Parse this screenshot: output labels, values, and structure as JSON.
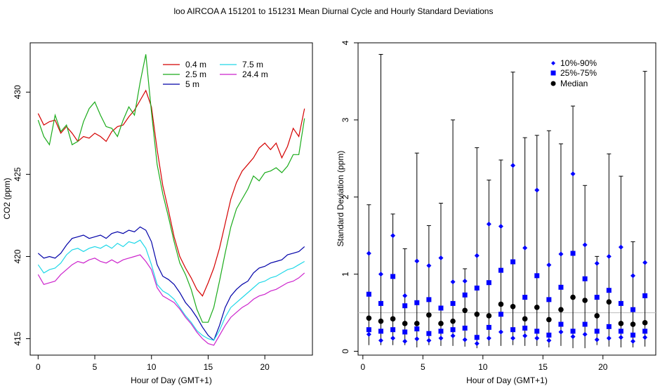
{
  "title": "loo   AIRCOA A   151201 to 151231   Mean Diurnal Cycle and Hourly Standard Deviations",
  "chart_data": [
    {
      "type": "line",
      "xlabel": "Hour of Day (GMT+1)",
      "ylabel": "CO2 (ppm)",
      "xlim": [
        -0.7,
        24.2
      ],
      "ylim": [
        414.0,
        433.0
      ],
      "xticks": [
        0,
        5,
        10,
        15,
        20
      ],
      "yticks": [
        415,
        420,
        425,
        430
      ],
      "grid": false,
      "legend_position": "top-right",
      "series": [
        {
          "name": "0.4 m",
          "color": "#d40000",
          "x": [
            0,
            0.5,
            1,
            1.5,
            2,
            2.5,
            3,
            3.5,
            4,
            4.5,
            5,
            5.5,
            6,
            6.5,
            7,
            7.5,
            8,
            8.5,
            9,
            9.5,
            10,
            10.5,
            11,
            11.5,
            12,
            12.5,
            13,
            13.5,
            14,
            14.5,
            15,
            15.5,
            16,
            16.5,
            17,
            17.5,
            18,
            18.5,
            19,
            19.5,
            20,
            20.5,
            21,
            21.5,
            22,
            22.5,
            23,
            23.5
          ],
          "y": [
            428.7,
            428.0,
            428.2,
            428.3,
            427.5,
            427.9,
            427.5,
            427.0,
            427.3,
            427.2,
            427.5,
            427.3,
            427.0,
            427.6,
            427.9,
            428.0,
            428.5,
            428.9,
            429.5,
            430.1,
            429.1,
            426.5,
            424.3,
            422.8,
            421.2,
            420.0,
            419.3,
            418.7,
            418.0,
            417.6,
            418.4,
            419.3,
            420.5,
            422.0,
            423.5,
            424.5,
            425.2,
            425.6,
            426.0,
            426.6,
            426.9,
            426.5,
            426.9,
            426.0,
            426.7,
            427.8,
            427.3,
            429.0
          ]
        },
        {
          "name": "2.5 m",
          "color": "#1aab1a",
          "x": [
            0,
            0.5,
            1,
            1.5,
            2,
            2.5,
            3,
            3.5,
            4,
            4.5,
            5,
            5.5,
            6,
            6.5,
            7,
            7.5,
            8,
            8.5,
            9,
            9.5,
            10,
            10.5,
            11,
            11.5,
            12,
            12.5,
            13,
            13.5,
            14,
            14.5,
            15,
            15.5,
            16,
            16.5,
            17,
            17.5,
            18,
            18.5,
            19,
            19.5,
            20,
            20.5,
            21,
            21.5,
            22,
            22.5,
            23,
            23.5
          ],
          "y": [
            428.3,
            427.3,
            426.8,
            428.6,
            427.6,
            428.0,
            426.8,
            427.0,
            428.2,
            429.0,
            429.4,
            428.6,
            427.9,
            427.8,
            427.3,
            428.3,
            429.1,
            428.6,
            430.6,
            432.3,
            428.8,
            425.6,
            423.8,
            422.4,
            420.9,
            419.6,
            418.9,
            418.0,
            416.8,
            416.0,
            416.0,
            416.9,
            418.5,
            420.2,
            421.8,
            422.9,
            423.5,
            424.1,
            424.9,
            424.6,
            425.1,
            425.2,
            425.4,
            425.1,
            425.5,
            426.2,
            426.2,
            428.4
          ]
        },
        {
          "name": "5 m",
          "color": "#0000a8",
          "x": [
            0,
            0.5,
            1,
            1.5,
            2,
            2.5,
            3,
            3.5,
            4,
            4.5,
            5,
            5.5,
            6,
            6.5,
            7,
            7.5,
            8,
            8.5,
            9,
            9.5,
            10,
            10.5,
            11,
            11.5,
            12,
            12.5,
            13,
            13.5,
            14,
            14.5,
            15,
            15.5,
            16,
            16.5,
            17,
            17.5,
            18,
            18.5,
            19,
            19.5,
            20,
            20.5,
            21,
            21.5,
            22,
            22.5,
            23,
            23.5
          ],
          "y": [
            420.2,
            419.9,
            420.0,
            419.9,
            420.2,
            420.7,
            421.1,
            421.2,
            421.3,
            421.1,
            421.2,
            421.3,
            421.1,
            421.4,
            421.5,
            421.4,
            421.6,
            421.5,
            421.8,
            421.6,
            420.9,
            419.5,
            418.8,
            418.6,
            418.3,
            417.8,
            417.2,
            416.8,
            416.3,
            415.7,
            415.2,
            414.9,
            415.8,
            416.9,
            417.6,
            418.0,
            418.3,
            418.5,
            419.0,
            419.3,
            419.4,
            419.6,
            419.7,
            419.8,
            420.1,
            420.2,
            420.3,
            420.6
          ]
        },
        {
          "name": "7.5 m",
          "color": "#20d8e8",
          "x": [
            0,
            0.5,
            1,
            1.5,
            2,
            2.5,
            3,
            3.5,
            4,
            4.5,
            5,
            5.5,
            6,
            6.5,
            7,
            7.5,
            8,
            8.5,
            9,
            9.5,
            10,
            10.5,
            11,
            11.5,
            12,
            12.5,
            13,
            13.5,
            14,
            14.5,
            15,
            15.5,
            16,
            16.5,
            17,
            17.5,
            18,
            18.5,
            19,
            19.5,
            20,
            20.5,
            21,
            21.5,
            22,
            22.5,
            23,
            23.5
          ],
          "y": [
            419.5,
            419.0,
            419.2,
            419.3,
            419.6,
            420.1,
            420.4,
            420.5,
            420.3,
            420.5,
            420.6,
            420.5,
            420.7,
            420.5,
            420.8,
            420.6,
            420.9,
            420.8,
            421.0,
            420.5,
            419.5,
            418.3,
            417.9,
            417.7,
            417.4,
            416.9,
            416.4,
            416.0,
            415.5,
            415.2,
            415.0,
            414.9,
            415.5,
            416.3,
            416.9,
            417.2,
            417.5,
            417.8,
            418.1,
            418.4,
            418.5,
            418.7,
            418.8,
            419.0,
            419.2,
            419.3,
            419.5,
            419.7
          ]
        },
        {
          "name": "24.4 m",
          "color": "#cc22cc",
          "x": [
            0,
            0.5,
            1,
            1.5,
            2,
            2.5,
            3,
            3.5,
            4,
            4.5,
            5,
            5.5,
            6,
            6.5,
            7,
            7.5,
            8,
            8.5,
            9,
            9.5,
            10,
            10.5,
            11,
            11.5,
            12,
            12.5,
            13,
            13.5,
            14,
            14.5,
            15,
            15.5,
            16,
            16.5,
            17,
            17.5,
            18,
            18.5,
            19,
            19.5,
            20,
            20.5,
            21,
            21.5,
            22,
            22.5,
            23,
            23.5
          ],
          "y": [
            418.9,
            418.3,
            418.4,
            418.5,
            418.9,
            419.2,
            419.5,
            419.7,
            419.6,
            419.8,
            419.9,
            419.7,
            419.6,
            419.8,
            419.6,
            419.8,
            419.9,
            420.0,
            420.1,
            419.7,
            419.2,
            418.1,
            417.6,
            417.4,
            417.2,
            416.8,
            416.3,
            415.9,
            415.4,
            415.0,
            414.7,
            414.6,
            415.2,
            415.8,
            416.3,
            416.6,
            416.9,
            417.1,
            417.4,
            417.6,
            417.7,
            417.9,
            418.0,
            418.2,
            418.4,
            418.5,
            418.7,
            419.0
          ]
        }
      ]
    },
    {
      "type": "scatter",
      "xlabel": "Hour of Day (GMT+1)",
      "ylabel": "Standard Deviation (ppm)",
      "xlim": [
        -0.4,
        24.4
      ],
      "ylim": [
        -0.05,
        4.0
      ],
      "xticks": [
        0,
        5,
        10,
        15,
        20
      ],
      "yticks": [
        0,
        1,
        2,
        3,
        4
      ],
      "reference_line": 0.5,
      "grid": false,
      "legend_position": "top-right",
      "legend": [
        {
          "label": "10%-90%",
          "marker": "diamond",
          "color": "#0000ff"
        },
        {
          "label": "25%-75%",
          "marker": "square",
          "color": "#0000ff"
        },
        {
          "label": "Median",
          "marker": "circle",
          "color": "#000000"
        }
      ],
      "x": [
        0.5,
        1.5,
        2.5,
        3.5,
        4.5,
        5.5,
        6.5,
        7.5,
        8.5,
        9.5,
        10.5,
        11.5,
        12.5,
        13.5,
        14.5,
        15.5,
        16.5,
        17.5,
        18.5,
        19.5,
        20.5,
        21.5,
        22.5,
        23.5
      ],
      "min": [
        0.08,
        0.08,
        0.08,
        0.08,
        0.05,
        0.08,
        0.07,
        0.07,
        0.06,
        0.04,
        0.07,
        0.07,
        0.08,
        0.07,
        0.07,
        0.05,
        0.07,
        0.04,
        0.04,
        0.08,
        0.06,
        0.05,
        0.05,
        0.06
      ],
      "max": [
        1.9,
        3.85,
        1.78,
        1.33,
        2.57,
        1.63,
        1.92,
        3.0,
        1.07,
        2.64,
        2.22,
        2.48,
        3.62,
        2.77,
        2.8,
        2.86,
        2.69,
        3.18,
        2.15,
        1.23,
        2.56,
        2.27,
        1.42,
        3.63
      ],
      "p10": [
        0.22,
        0.14,
        0.17,
        0.13,
        0.16,
        0.14,
        0.17,
        0.2,
        0.15,
        0.1,
        0.17,
        0.25,
        0.17,
        0.2,
        0.17,
        0.14,
        0.25,
        0.19,
        0.22,
        0.15,
        0.17,
        0.18,
        0.13,
        0.18
      ],
      "p25": [
        0.28,
        0.26,
        0.28,
        0.25,
        0.29,
        0.23,
        0.26,
        0.28,
        0.3,
        0.18,
        0.31,
        0.48,
        0.28,
        0.3,
        0.26,
        0.21,
        0.35,
        0.26,
        0.35,
        0.26,
        0.32,
        0.26,
        0.21,
        0.26
      ],
      "median": [
        0.43,
        0.39,
        0.42,
        0.36,
        0.36,
        0.47,
        0.36,
        0.39,
        0.53,
        0.48,
        0.46,
        0.61,
        0.58,
        0.42,
        0.57,
        0.41,
        0.54,
        0.7,
        0.66,
        0.46,
        0.64,
        0.36,
        0.35,
        0.37
      ],
      "p75": [
        0.74,
        0.62,
        0.97,
        0.59,
        0.63,
        0.67,
        0.56,
        0.62,
        0.73,
        0.82,
        0.89,
        1.05,
        1.16,
        0.7,
        0.98,
        0.67,
        0.83,
        1.27,
        0.94,
        0.7,
        0.79,
        0.62,
        0.54,
        0.72
      ],
      "p90": [
        1.27,
        1.0,
        1.5,
        0.72,
        1.17,
        1.11,
        1.21,
        0.9,
        0.91,
        1.24,
        1.65,
        1.62,
        2.41,
        1.34,
        2.09,
        1.12,
        1.26,
        2.3,
        1.38,
        1.14,
        1.23,
        1.35,
        0.98,
        1.15
      ]
    }
  ]
}
